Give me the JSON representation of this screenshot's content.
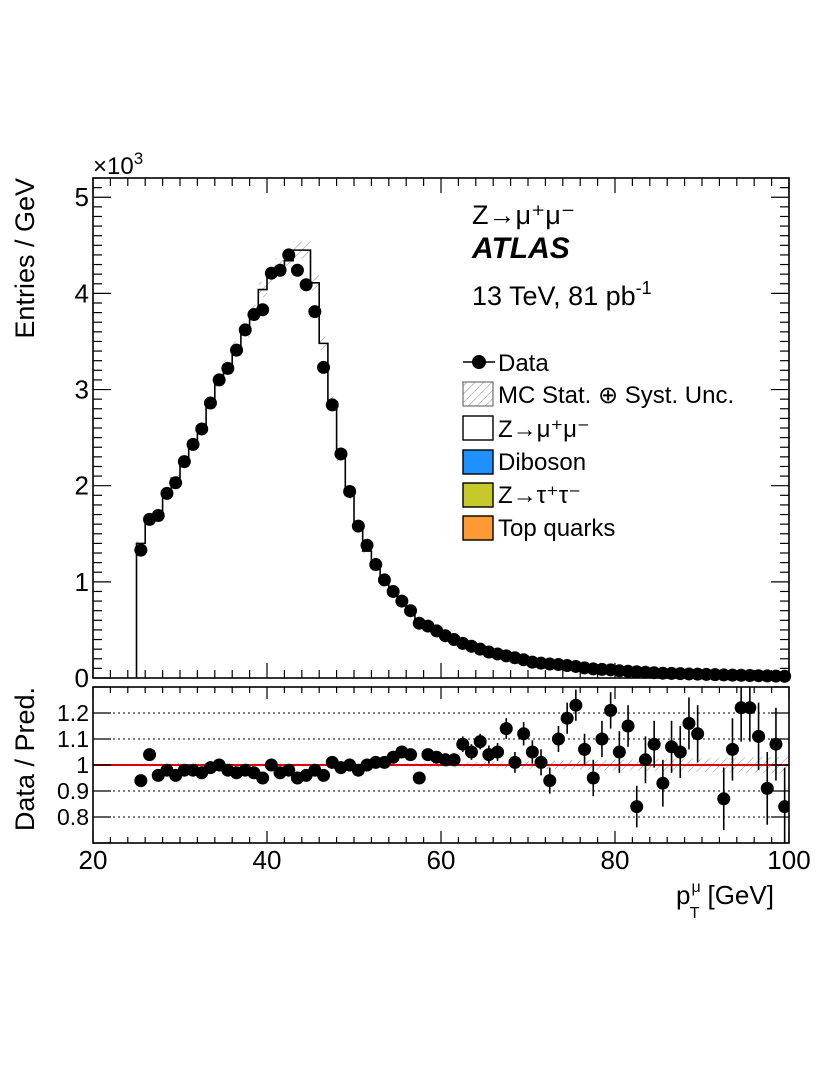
{
  "chart_data": [
    {
      "type": "histogram",
      "panel": "main",
      "title_lines": {
        "process": "Z→μ⁺μ⁻",
        "experiment": "ATLAS",
        "energy": "13 TeV, 81 pb"
      },
      "energy_suffix": "-1",
      "ylabel": "Entries / GeV",
      "yscale_label": "×10",
      "yscale_exp": "3",
      "xlim": [
        20,
        100
      ],
      "ylim": [
        0,
        5.2
      ],
      "yticks": [
        "0",
        "1",
        "2",
        "3",
        "4",
        "5"
      ],
      "legend": {
        "position": "top-right",
        "entries": [
          {
            "label": "Data",
            "kind": "marker"
          },
          {
            "label": "MC Stat. ⊕ Syst. Unc.",
            "kind": "hatch"
          },
          {
            "label": "Z→μ⁺μ⁻",
            "kind": "box",
            "color": "#ffffff"
          },
          {
            "label": "Diboson",
            "kind": "box",
            "color": "#1e90ff"
          },
          {
            "label": "Z→τ⁺τ⁻",
            "kind": "box",
            "color": "#c8c82a"
          },
          {
            "label": "Top quarks",
            "kind": "box",
            "color": "#ff9933"
          }
        ]
      },
      "bin_width": 1,
      "bin_low_edges": [
        25,
        26,
        27,
        28,
        29,
        30,
        31,
        32,
        33,
        34,
        35,
        36,
        37,
        38,
        39,
        40,
        41,
        42,
        43,
        44,
        45,
        46,
        47,
        48,
        49,
        50,
        51,
        52,
        53,
        54,
        55,
        56,
        57,
        58,
        59,
        60,
        61,
        62,
        63,
        64,
        65,
        66,
        67,
        68,
        69,
        70,
        71,
        72,
        73,
        74,
        75,
        76,
        77,
        78,
        79,
        80,
        81,
        82,
        83,
        84,
        85,
        86,
        87,
        88,
        89,
        90,
        91,
        92,
        93,
        94,
        95,
        96,
        97,
        98,
        99
      ],
      "prediction_values": [
        1.4,
        1.66,
        1.73,
        1.92,
        2.08,
        2.27,
        2.42,
        2.6,
        2.86,
        3.09,
        3.24,
        3.43,
        3.61,
        3.8,
        4.04,
        4.18,
        4.28,
        4.34,
        4.45,
        4.45,
        4.11,
        3.48,
        2.87,
        2.3,
        1.9,
        1.55,
        1.32,
        1.14,
        1.0,
        0.87,
        0.77,
        0.68,
        0.6,
        0.53,
        0.47,
        0.42,
        0.38,
        0.34,
        0.31,
        0.28,
        0.25,
        0.23,
        0.21,
        0.19,
        0.17,
        0.16,
        0.145,
        0.133,
        0.122,
        0.112,
        0.103,
        0.095,
        0.088,
        0.081,
        0.075,
        0.069,
        0.064,
        0.059,
        0.055,
        0.051,
        0.047,
        0.044,
        0.041,
        0.038,
        0.035,
        0.033,
        0.031,
        0.029,
        0.027,
        0.025,
        0.023,
        0.022,
        0.021,
        0.019,
        0.018
      ],
      "data_values": [
        1.33,
        1.65,
        1.69,
        1.92,
        2.03,
        2.25,
        2.43,
        2.59,
        2.86,
        3.1,
        3.22,
        3.41,
        3.62,
        3.78,
        3.83,
        4.21,
        4.24,
        4.4,
        4.24,
        4.09,
        3.81,
        3.23,
        2.84,
        2.33,
        1.94,
        1.58,
        1.38,
        1.18,
        1.02,
        0.9,
        0.8,
        0.7,
        0.57,
        0.54,
        0.49,
        0.44,
        0.4,
        0.36,
        0.33,
        0.3,
        0.27,
        0.25,
        0.23,
        0.21,
        0.19,
        0.165,
        0.155,
        0.145,
        0.14,
        0.13,
        0.12,
        0.105,
        0.095,
        0.09,
        0.085,
        0.075,
        0.07,
        0.065,
        0.06,
        0.055,
        0.05,
        0.048,
        0.045,
        0.042,
        0.04,
        0.038,
        0.035,
        0.032,
        0.03,
        0.028,
        0.026,
        0.024,
        0.022,
        0.02,
        0.018
      ]
    },
    {
      "type": "scatter",
      "panel": "ratio",
      "ylabel": "Data / Pred.",
      "xlabel_main": "p",
      "xlabel_sup": "μ",
      "xlabel_sub": "T",
      "xlabel_unit": "[GeV]",
      "xlim": [
        20,
        100
      ],
      "ylim": [
        0.7,
        1.3
      ],
      "xticks": [
        "20",
        "40",
        "60",
        "80",
        "100"
      ],
      "yticks": [
        "0.8",
        "0.9",
        "1",
        "1.1",
        "1.2"
      ],
      "reference_line": 1.0,
      "reference_color": "#e00000",
      "x": [
        25.5,
        26.5,
        27.5,
        28.5,
        29.5,
        30.5,
        31.5,
        32.5,
        33.5,
        34.5,
        35.5,
        36.5,
        37.5,
        38.5,
        39.5,
        40.5,
        41.5,
        42.5,
        43.5,
        44.5,
        45.5,
        46.5,
        47.5,
        48.5,
        49.5,
        50.5,
        51.5,
        52.5,
        53.5,
        54.5,
        55.5,
        56.5,
        57.5,
        58.5,
        59.5,
        60.5,
        61.5,
        62.5,
        63.5,
        64.5,
        65.5,
        66.5,
        67.5,
        68.5,
        69.5,
        70.5,
        71.5,
        72.5,
        73.5,
        74.5,
        75.5,
        76.5,
        77.5,
        78.5,
        79.5,
        80.5,
        81.5,
        82.5,
        83.5,
        84.5,
        85.5,
        86.5,
        87.5,
        88.5,
        89.5,
        92.5,
        93.5,
        94.5,
        95.5,
        96.5,
        97.5,
        98.5,
        99.5
      ],
      "ratio": [
        0.94,
        1.04,
        0.96,
        0.98,
        0.96,
        0.98,
        0.98,
        0.97,
        0.99,
        1.0,
        0.98,
        0.97,
        0.98,
        0.97,
        0.95,
        1.0,
        0.97,
        0.98,
        0.95,
        0.96,
        0.98,
        0.96,
        1.01,
        0.99,
        1.0,
        0.98,
        1.0,
        1.01,
        1.01,
        1.03,
        1.05,
        1.04,
        0.95,
        1.04,
        1.03,
        1.02,
        1.02,
        1.08,
        1.05,
        1.09,
        1.04,
        1.05,
        1.14,
        1.01,
        1.12,
        1.05,
        1.01,
        0.94,
        1.1,
        1.18,
        1.23,
        1.06,
        0.95,
        1.1,
        1.21,
        1.05,
        1.15,
        0.84,
        1.02,
        1.08,
        0.93,
        1.07,
        1.05,
        1.16,
        1.12,
        0.87,
        1.06,
        1.22,
        1.22,
        1.11,
        0.91,
        1.08,
        0.84
      ],
      "errors": [
        0.01,
        0.01,
        0.01,
        0.01,
        0.01,
        0.01,
        0.01,
        0.01,
        0.01,
        0.01,
        0.01,
        0.01,
        0.01,
        0.01,
        0.01,
        0.01,
        0.01,
        0.01,
        0.01,
        0.01,
        0.01,
        0.01,
        0.01,
        0.01,
        0.01,
        0.01,
        0.01,
        0.015,
        0.015,
        0.015,
        0.015,
        0.02,
        0.02,
        0.02,
        0.02,
        0.025,
        0.025,
        0.03,
        0.03,
        0.03,
        0.035,
        0.035,
        0.04,
        0.04,
        0.045,
        0.045,
        0.05,
        0.05,
        0.05,
        0.06,
        0.06,
        0.06,
        0.07,
        0.07,
        0.07,
        0.08,
        0.08,
        0.08,
        0.09,
        0.09,
        0.09,
        0.1,
        0.1,
        0.1,
        0.11,
        0.12,
        0.12,
        0.13,
        0.13,
        0.13,
        0.14,
        0.14,
        0.15
      ]
    }
  ]
}
